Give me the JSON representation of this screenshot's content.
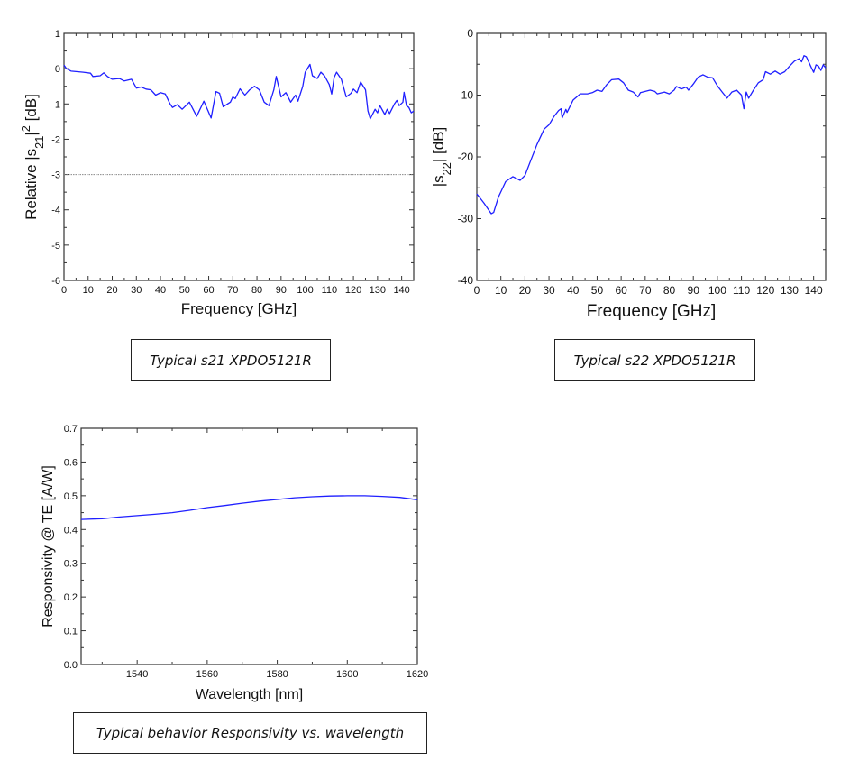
{
  "chart_data": [
    {
      "id": "s21",
      "type": "line",
      "title": "",
      "caption": "Typical s21 XPDO5121R",
      "xlabel": "Frequency  [GHz]",
      "ylabel": "Relative |s21|² [dB]",
      "xlim": [
        0,
        145
      ],
      "ylim": [
        -6,
        1
      ],
      "xticks": [
        0,
        10,
        20,
        30,
        40,
        50,
        60,
        70,
        80,
        90,
        100,
        110,
        120,
        130,
        140
      ],
      "yticks": [
        -6,
        -5,
        -4,
        -3,
        -2,
        -1,
        0,
        1
      ],
      "xminor": 5,
      "yminor": 0.5,
      "reference_line": {
        "y": -3,
        "style": "dotted",
        "color": "#888888"
      },
      "color": "#1f1fff",
      "series": [
        {
          "name": "s21",
          "x": [
            0,
            1,
            3,
            8,
            11,
            12,
            15,
            16.5,
            18,
            20,
            23,
            25,
            28,
            30,
            32,
            34,
            36,
            38,
            40,
            42,
            44,
            45,
            47,
            49,
            52,
            55,
            58,
            61,
            63,
            64.5,
            66,
            69,
            70,
            71,
            73,
            75,
            77,
            79,
            81,
            83,
            85,
            87,
            88,
            90,
            92,
            94,
            96,
            97,
            99,
            100,
            102,
            103,
            105,
            106.5,
            108,
            110,
            111,
            112,
            113,
            115,
            117,
            119,
            120,
            121.5,
            123,
            125,
            126,
            127,
            129,
            130,
            131,
            133,
            134,
            135,
            137,
            138,
            139,
            140.5,
            141,
            142,
            143,
            144,
            145
          ],
          "y": [
            0.1,
            0,
            -0.07,
            -0.1,
            -0.13,
            -0.22,
            -0.2,
            -0.12,
            -0.22,
            -0.3,
            -0.28,
            -0.35,
            -0.3,
            -0.55,
            -0.52,
            -0.58,
            -0.6,
            -0.75,
            -0.68,
            -0.72,
            -1.0,
            -1.1,
            -1.02,
            -1.15,
            -0.95,
            -1.35,
            -0.92,
            -1.4,
            -0.65,
            -0.7,
            -1.08,
            -0.95,
            -0.8,
            -0.85,
            -0.57,
            -0.75,
            -0.6,
            -0.5,
            -0.6,
            -0.95,
            -1.05,
            -0.6,
            -0.22,
            -0.8,
            -0.68,
            -0.95,
            -0.75,
            -0.92,
            -0.5,
            -0.1,
            0.12,
            -0.2,
            -0.28,
            -0.1,
            -0.2,
            -0.45,
            -0.72,
            -0.25,
            -0.1,
            -0.3,
            -0.8,
            -0.7,
            -0.58,
            -0.68,
            -0.38,
            -0.6,
            -1.2,
            -1.42,
            -1.15,
            -1.25,
            -1.05,
            -1.3,
            -1.15,
            -1.27,
            -1.0,
            -0.9,
            -1.05,
            -0.95,
            -0.67,
            -1.05,
            -1.1,
            -1.25,
            -1.2
          ]
        }
      ]
    },
    {
      "id": "s22",
      "type": "line",
      "title": "",
      "caption": "Typical s22 XPDO5121R",
      "xlabel": "Frequency  [GHz]",
      "ylabel": "|s22|  [dB]",
      "xlim": [
        0,
        145
      ],
      "ylim": [
        -40,
        0
      ],
      "xticks": [
        0,
        10,
        20,
        30,
        40,
        50,
        60,
        70,
        80,
        90,
        100,
        110,
        120,
        130,
        140
      ],
      "yticks": [
        -40,
        -30,
        -20,
        -10,
        0
      ],
      "xminor": 5,
      "yminor": 5,
      "color": "#1f1fff",
      "series": [
        {
          "name": "s22",
          "x": [
            0,
            1,
            3,
            6,
            7,
            9,
            12,
            15,
            18,
            20,
            22,
            25,
            28,
            30,
            32,
            34,
            35,
            35.5,
            37,
            37.5,
            40,
            43,
            46,
            48,
            50,
            52,
            54,
            56,
            59,
            61,
            63,
            65,
            67,
            68,
            72,
            74,
            75,
            78,
            80,
            82,
            83,
            85,
            87,
            88,
            90,
            92,
            94,
            96,
            98,
            100,
            102,
            104,
            106,
            108,
            110,
            111,
            112,
            113,
            115,
            117,
            119,
            120,
            122,
            124,
            126,
            128,
            130,
            132,
            134,
            135,
            136,
            137,
            139,
            140,
            141,
            142,
            143,
            144,
            145
          ],
          "y": [
            -26,
            -26.5,
            -27.5,
            -29.2,
            -29,
            -26.5,
            -24,
            -23.2,
            -23.8,
            -23,
            -21,
            -18,
            -15.5,
            -14.8,
            -13.5,
            -12.5,
            -12.2,
            -13.7,
            -12.3,
            -12.8,
            -10.8,
            -9.8,
            -9.8,
            -9.6,
            -9.2,
            -9.4,
            -8.3,
            -7.5,
            -7.4,
            -8,
            -9.2,
            -9.5,
            -10.3,
            -9.6,
            -9.2,
            -9.4,
            -9.8,
            -9.5,
            -9.8,
            -9.2,
            -8.6,
            -9,
            -8.7,
            -9.2,
            -8.2,
            -7.1,
            -6.7,
            -7.1,
            -7.2,
            -8.5,
            -9.5,
            -10.5,
            -9.5,
            -9.2,
            -10,
            -12.2,
            -9.5,
            -10.5,
            -9.2,
            -8,
            -7.5,
            -6.2,
            -6.6,
            -6.1,
            -6.6,
            -6.2,
            -5.3,
            -4.5,
            -4.1,
            -4.6,
            -3.6,
            -3.8,
            -5.5,
            -6.3,
            -5.1,
            -5.3,
            -6,
            -5.1,
            -5.6
          ]
        }
      ]
    },
    {
      "id": "responsivity",
      "type": "line",
      "title": "",
      "caption": "Typical behavior Responsivity vs. wavelength",
      "xlabel": "Wavelength  [nm]",
      "ylabel": "Responsivity @ TE  [A/W]",
      "xlim": [
        1524,
        1620
      ],
      "ylim": [
        0,
        0.7
      ],
      "xticks": [
        1540,
        1560,
        1580,
        1600,
        1620
      ],
      "yticks": [
        0.0,
        0.1,
        0.2,
        0.3,
        0.4,
        0.5,
        0.6,
        0.7
      ],
      "ytick_labels": [
        "0.0",
        "0.1",
        "0.2",
        "0.3",
        "0.4",
        "0.5",
        "0.6",
        "0.7"
      ],
      "xminor": 10,
      "yminor": 0.05,
      "color": "#1f1fff",
      "series": [
        {
          "name": "TE",
          "x": [
            1524,
            1530,
            1535,
            1540,
            1545,
            1550,
            1555,
            1560,
            1565,
            1570,
            1575,
            1580,
            1585,
            1590,
            1595,
            1600,
            1605,
            1610,
            1615,
            1620
          ],
          "y": [
            0.43,
            0.432,
            0.437,
            0.441,
            0.445,
            0.45,
            0.457,
            0.465,
            0.471,
            0.478,
            0.484,
            0.489,
            0.494,
            0.497,
            0.499,
            0.5,
            0.5,
            0.498,
            0.495,
            0.488
          ]
        }
      ]
    }
  ]
}
